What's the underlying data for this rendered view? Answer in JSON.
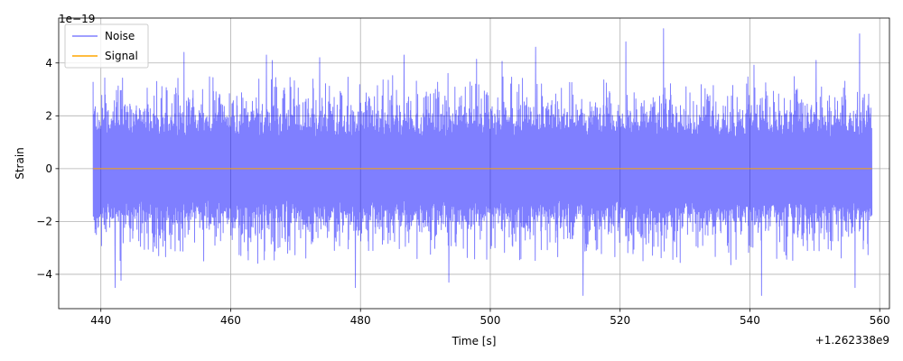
{
  "chart_data": {
    "type": "line",
    "xlabel": "Time [s]",
    "ylabel": "Strain",
    "x_offset_label": "+1.262338e9",
    "y_scale_label": "1e−19",
    "xlim": [
      433.5,
      561.5
    ],
    "ylim": [
      -5.3,
      5.7
    ],
    "x_ticks": [
      440,
      460,
      480,
      500,
      520,
      540,
      560
    ],
    "x_tick_labels": [
      "440",
      "460",
      "480",
      "500",
      "520",
      "540",
      "560"
    ],
    "y_ticks": [
      -4,
      -2,
      0,
      2,
      4
    ],
    "y_tick_labels": [
      "−4",
      "−2",
      "0",
      "2",
      "4"
    ],
    "grid": true,
    "legend_position": "top-left",
    "series": [
      {
        "name": "Noise",
        "color": "#0000ff",
        "alpha": 0.5,
        "x_start": 438.8,
        "x_end": 558.8,
        "envelope_upper": 2.8,
        "envelope_lower": -2.8,
        "max": 5.3,
        "min": -4.8,
        "peaks": [
          {
            "x": 442.2,
            "y": -4.5
          },
          {
            "x": 448.6,
            "y": 3.3
          },
          {
            "x": 452.8,
            "y": 4.4
          },
          {
            "x": 465.5,
            "y": 4.3
          },
          {
            "x": 473.7,
            "y": 4.2
          },
          {
            "x": 479.2,
            "y": -4.5
          },
          {
            "x": 486.7,
            "y": 4.3
          },
          {
            "x": 493.6,
            "y": -4.3
          },
          {
            "x": 507.0,
            "y": 4.6
          },
          {
            "x": 514.3,
            "y": -4.8
          },
          {
            "x": 520.9,
            "y": 4.8
          },
          {
            "x": 526.7,
            "y": 5.3
          },
          {
            "x": 541.8,
            "y": -4.8
          },
          {
            "x": 550.2,
            "y": 4.1
          },
          {
            "x": 556.2,
            "y": -4.5
          },
          {
            "x": 556.9,
            "y": 5.1
          }
        ]
      },
      {
        "name": "Signal",
        "color": "#ffa500",
        "x": [
          438.8,
          558.8
        ],
        "y": [
          0,
          0
        ]
      }
    ]
  }
}
